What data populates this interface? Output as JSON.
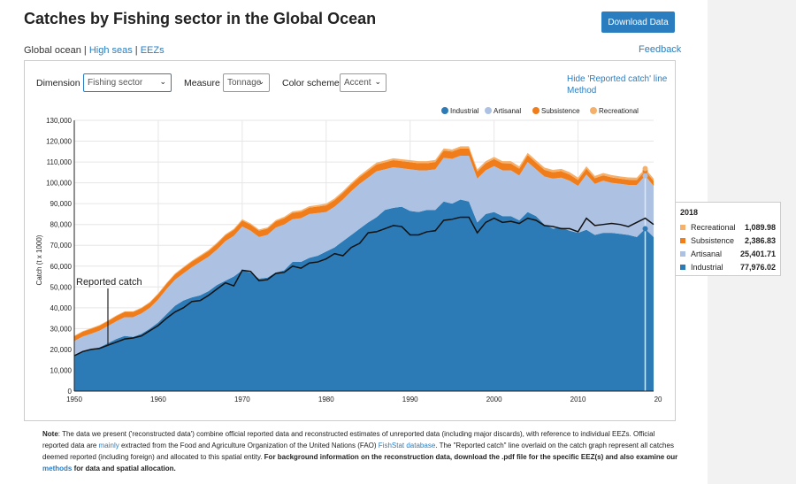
{
  "page": {
    "title": "Catches by Fishing sector in the Global Ocean",
    "download_label": "Download Data",
    "feedback_label": "Feedback",
    "scope": {
      "global": "Global ocean",
      "sep": " | ",
      "high_seas": "High seas",
      "eezs": "EEZs"
    }
  },
  "controls": {
    "dimension": {
      "label": "Dimension",
      "value": "Fishing sector"
    },
    "measure": {
      "label": "Measure",
      "value": "Tonnage"
    },
    "color_scheme": {
      "label": "Color scheme",
      "value": "Accent"
    },
    "hide_reported": "Hide 'Reported catch' line",
    "method": "Method"
  },
  "annotation": "Reported catch",
  "tooltip": {
    "year": "2018",
    "rows": [
      {
        "name": "Recreational",
        "value": "1,089.98",
        "color": "#f5b06b"
      },
      {
        "name": "Subsistence",
        "value": "2,386.83",
        "color": "#f07d1a"
      },
      {
        "name": "Artisanal",
        "value": "25,401.71",
        "color": "#adc2e3"
      },
      {
        "name": "Industrial",
        "value": "77,976.02",
        "color": "#2c7bb6"
      }
    ]
  },
  "note": {
    "label": "Note",
    "p1": ": The data we present ('reconstructed data') combine official reported data and reconstructed estimates of unreported data (including major discards), with reference to individual EEZs. Official reported data are ",
    "mainly": "mainly",
    "p2": " extracted from the Food and Agriculture Organization of the United Nations (FAO) ",
    "fishstat": "FishStat database",
    "p3": ". The \"Reported catch\" line overlaid on the catch graph represent all catches deemed reported (including foreign) and allocated to this spatial entity. ",
    "bold1": "For background information on the reconstruction data, download the .pdf file for the specific EEZ(s) and also examine our ",
    "methods": "methods",
    "bold2": " for data and spatial allocation."
  },
  "chart_data": {
    "type": "area",
    "stacked": true,
    "ylabel": "Catch (t x 1000)",
    "xlabel": "",
    "x": [
      1950,
      1951,
      1952,
      1953,
      1954,
      1955,
      1956,
      1957,
      1958,
      1959,
      1960,
      1961,
      1962,
      1963,
      1964,
      1965,
      1966,
      1967,
      1968,
      1969,
      1970,
      1971,
      1972,
      1973,
      1974,
      1975,
      1976,
      1977,
      1978,
      1979,
      1980,
      1981,
      1982,
      1983,
      1984,
      1985,
      1986,
      1987,
      1988,
      1989,
      1990,
      1991,
      1992,
      1993,
      1994,
      1995,
      1996,
      1997,
      1998,
      1999,
      2000,
      2001,
      2002,
      2003,
      2004,
      2005,
      2006,
      2007,
      2008,
      2009,
      2010,
      2011,
      2012,
      2013,
      2014,
      2015,
      2016,
      2017,
      2018,
      2019
    ],
    "xlim": [
      1950,
      2019
    ],
    "ylim": [
      0,
      130000
    ],
    "y_ticks": [
      0,
      10000,
      20000,
      30000,
      40000,
      50000,
      60000,
      70000,
      80000,
      90000,
      100000,
      110000,
      120000,
      130000
    ],
    "x_ticks": [
      "1950",
      "1960",
      "1970",
      "1980",
      "1990",
      "2000",
      "2010",
      "20"
    ],
    "legend_position": "top-right",
    "series": [
      {
        "name": "Industrial",
        "color": "#2c7bb6",
        "values": [
          17000,
          19000,
          20000,
          21000,
          23000,
          25000,
          26500,
          26000,
          27500,
          30000,
          33000,
          37000,
          41000,
          43500,
          45000,
          46000,
          48000,
          51000,
          53000,
          55000,
          58000,
          57000,
          54000,
          54500,
          57000,
          58000,
          62000,
          62000,
          64000,
          65000,
          67000,
          69000,
          72000,
          75000,
          78000,
          81000,
          83500,
          87000,
          88000,
          88500,
          86500,
          86000,
          87000,
          87000,
          91000,
          90000,
          92000,
          91000,
          81000,
          85000,
          86000,
          84000,
          84000,
          82000,
          86000,
          84000,
          80000,
          78000,
          78500,
          77000,
          76000,
          77500,
          75000,
          76000,
          76000,
          75500,
          75000,
          74000,
          77976,
          74000
        ]
      },
      {
        "name": "Artisanal",
        "color": "#adc2e3",
        "values": [
          7000,
          7200,
          7500,
          8000,
          8200,
          8500,
          9000,
          9500,
          9800,
          10000,
          11000,
          12000,
          12500,
          13000,
          14500,
          16000,
          16500,
          17000,
          19000,
          19500,
          21000,
          20000,
          20000,
          20500,
          21500,
          22000,
          20500,
          21000,
          21000,
          20500,
          19000,
          19500,
          20000,
          21000,
          21500,
          21500,
          22000,
          19500,
          19500,
          18500,
          20000,
          20000,
          19000,
          19500,
          21000,
          21500,
          21000,
          22000,
          21000,
          21000,
          22000,
          22000,
          22000,
          21500,
          24000,
          22500,
          23000,
          24000,
          24000,
          24000,
          22500,
          26500,
          24500,
          25000,
          24000,
          24000,
          24000,
          25000,
          25402,
          24500
        ]
      },
      {
        "name": "Subsistence",
        "color": "#f07d1a",
        "values": [
          2300,
          2300,
          2400,
          2400,
          2400,
          2500,
          2500,
          2500,
          2500,
          2500,
          2600,
          2600,
          2600,
          2700,
          2700,
          2700,
          2800,
          2800,
          2800,
          2900,
          2900,
          2900,
          3000,
          3000,
          3000,
          3000,
          3100,
          3100,
          3100,
          3100,
          3200,
          3200,
          3200,
          3200,
          3300,
          3300,
          3300,
          3300,
          3400,
          3400,
          3400,
          3400,
          3400,
          3500,
          3500,
          3500,
          3500,
          3500,
          3400,
          3400,
          3400,
          3400,
          3300,
          3300,
          3300,
          3200,
          3200,
          3100,
          3100,
          3000,
          2900,
          2800,
          2700,
          2600,
          2600,
          2500,
          2500,
          2400,
          2387,
          2400
        ]
      },
      {
        "name": "Recreational",
        "color": "#f5b06b",
        "values": [
          300,
          300,
          300,
          300,
          300,
          300,
          300,
          300,
          300,
          300,
          400,
          400,
          400,
          400,
          400,
          500,
          500,
          500,
          500,
          500,
          600,
          600,
          600,
          600,
          600,
          700,
          700,
          700,
          700,
          700,
          800,
          800,
          800,
          800,
          800,
          900,
          900,
          900,
          900,
          900,
          1000,
          1000,
          1000,
          1000,
          1000,
          1000,
          1000,
          1000,
          1000,
          1000,
          1000,
          1000,
          1100,
          1100,
          1100,
          1100,
          1100,
          1100,
          1100,
          1100,
          1100,
          1100,
          1100,
          1100,
          1100,
          1100,
          1100,
          1100,
          1090,
          1100
        ]
      }
    ],
    "reported_catch": {
      "name": "Reported catch",
      "values": [
        17000,
        19000,
        20000,
        20500,
        22000,
        23500,
        25000,
        25500,
        26500,
        29000,
        31500,
        35000,
        38000,
        40000,
        43000,
        43500,
        46000,
        49000,
        52000,
        50500,
        58000,
        57500,
        53000,
        53500,
        56500,
        57000,
        60000,
        59000,
        61500,
        62000,
        63500,
        66000,
        65000,
        69000,
        71000,
        76000,
        76500,
        78000,
        79500,
        79000,
        75000,
        75000,
        76500,
        77000,
        82000,
        82500,
        83500,
        83500,
        76000,
        81000,
        83000,
        81000,
        81500,
        80500,
        83000,
        82000,
        79500,
        79000,
        78000,
        78000,
        76500,
        83000,
        79500,
        80000,
        80500,
        80000,
        79000,
        81000,
        83000,
        80000
      ]
    }
  }
}
